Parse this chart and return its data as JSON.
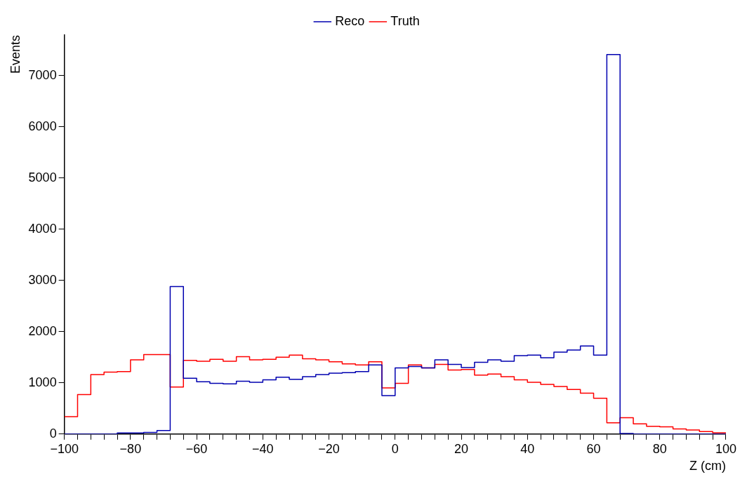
{
  "chart_data": {
    "type": "histogram",
    "xlabel": "Z (cm)",
    "ylabel": "Events",
    "bins": [
      -100,
      -96,
      -92,
      -88,
      -84,
      -80,
      -76,
      -72,
      -68,
      -64,
      -60,
      -56,
      -52,
      -48,
      -44,
      -40,
      -36,
      -32,
      -28,
      -24,
      -20,
      -16,
      -12,
      -8,
      -4,
      0,
      4,
      8,
      12,
      16,
      20,
      24,
      28,
      32,
      36,
      40,
      44,
      48,
      52,
      56,
      60,
      64,
      68,
      72,
      76,
      80,
      84,
      88,
      92,
      96,
      100
    ],
    "series": [
      {
        "name": "Reco",
        "color": "#0000b0",
        "values": [
          0,
          0,
          0,
          0,
          20,
          20,
          30,
          70,
          2880,
          1090,
          1020,
          990,
          980,
          1030,
          1010,
          1060,
          1110,
          1070,
          1120,
          1160,
          1190,
          1200,
          1220,
          1350,
          750,
          1290,
          1320,
          1290,
          1450,
          1360,
          1300,
          1400,
          1450,
          1420,
          1530,
          1540,
          1490,
          1600,
          1640,
          1720,
          1540,
          7410,
          10,
          0,
          0,
          0,
          0,
          0,
          0,
          0
        ]
      },
      {
        "name": "Truth",
        "color": "#ff0000",
        "values": [
          340,
          770,
          1160,
          1210,
          1220,
          1450,
          1550,
          1550,
          920,
          1440,
          1420,
          1460,
          1420,
          1510,
          1450,
          1460,
          1500,
          1540,
          1470,
          1450,
          1410,
          1370,
          1350,
          1410,
          900,
          990,
          1350,
          1290,
          1360,
          1250,
          1260,
          1150,
          1170,
          1120,
          1060,
          1010,
          970,
          930,
          870,
          800,
          700,
          220,
          320,
          200,
          150,
          140,
          100,
          80,
          50,
          25
        ]
      }
    ],
    "xlim": [
      -100,
      100
    ],
    "xticks": [
      -100,
      {
        "value": -96,
        "label": null
      },
      {
        "value": -92,
        "label": null
      },
      {
        "value": -88,
        "label": null
      },
      {
        "value": -84,
        "label": null
      },
      -80,
      {
        "value": -76,
        "label": null
      },
      {
        "value": -72,
        "label": null
      },
      {
        "value": -68,
        "label": null
      },
      {
        "value": -64,
        "label": null
      },
      -60,
      {
        "value": -56,
        "label": null
      },
      {
        "value": -52,
        "label": null
      },
      {
        "value": -48,
        "label": null
      },
      {
        "value": -44,
        "label": null
      },
      -40,
      {
        "value": -36,
        "label": null
      },
      {
        "value": -32,
        "label": null
      },
      {
        "value": -28,
        "label": null
      },
      {
        "value": -24,
        "label": null
      },
      -20,
      {
        "value": -16,
        "label": null
      },
      {
        "value": -12,
        "label": null
      },
      {
        "value": -8,
        "label": null
      },
      {
        "value": -4,
        "label": null
      },
      0,
      {
        "value": 4,
        "label": null
      },
      {
        "value": 8,
        "label": null
      },
      {
        "value": 12,
        "label": null
      },
      {
        "value": 16,
        "label": null
      },
      20,
      {
        "value": 24,
        "label": null
      },
      {
        "value": 28,
        "label": null
      },
      {
        "value": 32,
        "label": null
      },
      {
        "value": 36,
        "label": null
      },
      40,
      {
        "value": 44,
        "label": null
      },
      {
        "value": 48,
        "label": null
      },
      {
        "value": 52,
        "label": null
      },
      {
        "value": 56,
        "label": null
      },
      60,
      {
        "value": 64,
        "label": null
      },
      {
        "value": 68,
        "label": null
      },
      {
        "value": 72,
        "label": null
      },
      {
        "value": 76,
        "label": null
      },
      80,
      {
        "value": 84,
        "label": null
      },
      {
        "value": 88,
        "label": null
      },
      {
        "value": 92,
        "label": null
      },
      {
        "value": 96,
        "label": null
      },
      100
    ],
    "ylim": [
      0,
      7790
    ],
    "yticks": [
      0,
      1000,
      2000,
      3000,
      4000,
      5000,
      6000,
      7000
    ],
    "grid": false,
    "legend": "top"
  }
}
